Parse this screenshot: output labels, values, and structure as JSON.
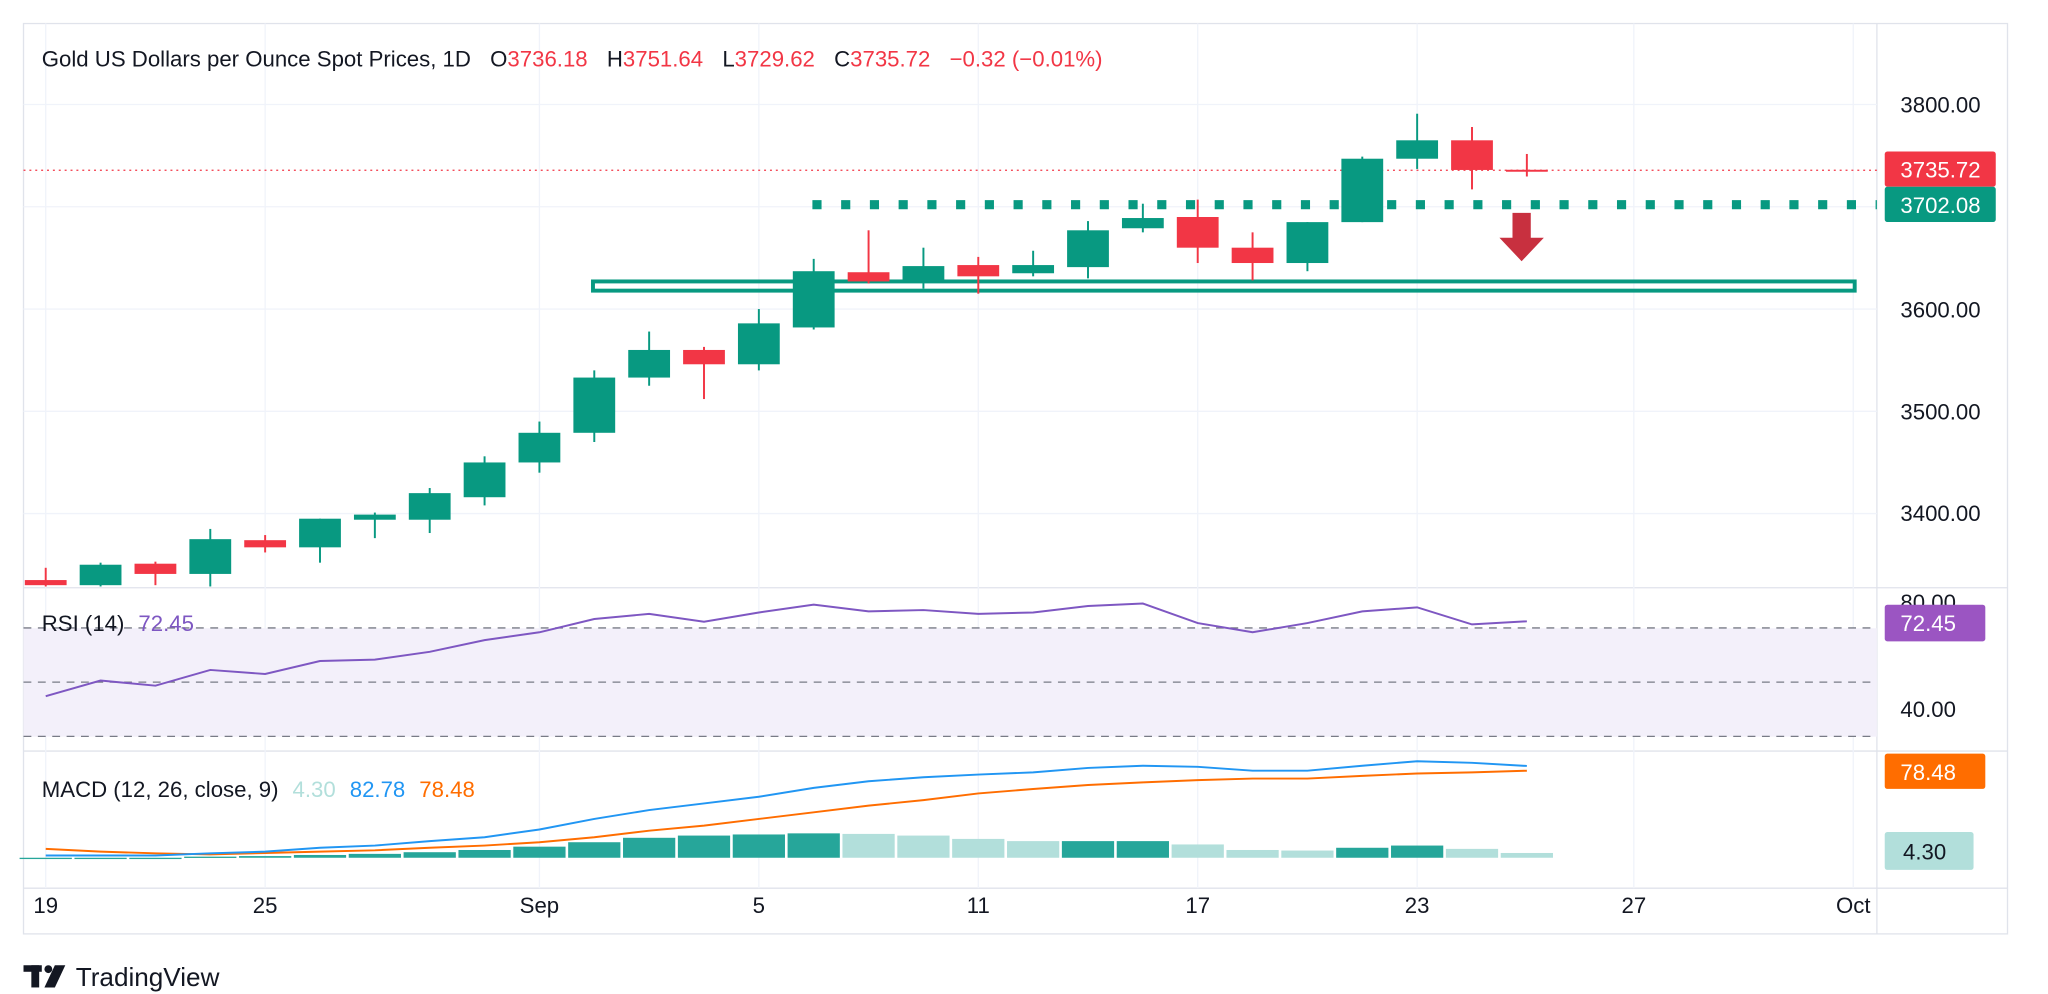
{
  "header": {
    "title": "Gold US Dollars per Ounce Spot Prices, 1D",
    "o_label": "O",
    "o_value": "3736.18",
    "h_label": "H",
    "h_value": "3751.64",
    "l_label": "L",
    "l_value": "3729.62",
    "c_label": "C",
    "c_value": "3735.72",
    "change": "−0.32 (−0.01%)"
  },
  "colors": {
    "up": "#089981",
    "down": "#f23645",
    "rsi": "#7e57c2",
    "rsi_label": "#9b55c2",
    "macd": "#2196f3",
    "signal": "#ff6d00",
    "hist_up": "#26a69a",
    "hist_down": "#b2dfdb",
    "arrow": "#c8303f"
  },
  "price_axis": {
    "ticks": [
      "3800.00",
      "3600.00",
      "3500.00",
      "3400.00"
    ],
    "last_price_label": "3735.72",
    "level_label": "3702.08"
  },
  "rsi_axis": {
    "ticks": [
      "80.00",
      "40.00"
    ],
    "value_label": "72.45"
  },
  "macd_axis": {
    "signal_label": "78.48",
    "hist_label": "4.30"
  },
  "time_axis": {
    "ticks": [
      "19",
      "25",
      "Sep",
      "5",
      "11",
      "17",
      "23",
      "27",
      "Oct"
    ]
  },
  "legend": {
    "rsi_name": "RSI (14)",
    "rsi_value": "72.45",
    "macd_name": "MACD (12, 26, close, 9)",
    "macd_hist": "4.30",
    "macd_value": "82.78",
    "macd_signal": "78.48"
  },
  "branding": {
    "logo_text": "TradingView"
  },
  "chart_data": {
    "type": "candlestick",
    "title": "Gold US Dollars per Ounce Spot Prices, 1D",
    "ylim": [
      3327,
      3830
    ],
    "levels": {
      "resistance_dotted": 3702.08,
      "support_zone": [
        3618,
        3627
      ],
      "last_price": 3735.72
    },
    "annotations": [
      "down-arrow below resistance at latest bar"
    ],
    "candles": [
      {
        "date": "Aug 19",
        "o": 3335,
        "h": 3347,
        "l": 3327,
        "c": 3330
      },
      {
        "date": "Aug 20",
        "o": 3330,
        "h": 3352,
        "l": 3328,
        "c": 3350
      },
      {
        "date": "Aug 21",
        "o": 3351,
        "h": 3353,
        "l": 3330,
        "c": 3341
      },
      {
        "date": "Aug 22",
        "o": 3341,
        "h": 3385,
        "l": 3328,
        "c": 3375
      },
      {
        "date": "Aug 25",
        "o": 3374,
        "h": 3379,
        "l": 3362,
        "c": 3367
      },
      {
        "date": "Aug 26",
        "o": 3367,
        "h": 3395,
        "l": 3352,
        "c": 3395
      },
      {
        "date": "Aug 27",
        "o": 3394,
        "h": 3401,
        "l": 3376,
        "c": 3399
      },
      {
        "date": "Aug 28",
        "o": 3394,
        "h": 3425,
        "l": 3381,
        "c": 3420
      },
      {
        "date": "Aug 29",
        "o": 3416,
        "h": 3456,
        "l": 3408,
        "c": 3450
      },
      {
        "date": "Sep 1",
        "o": 3450,
        "h": 3490,
        "l": 3440,
        "c": 3479
      },
      {
        "date": "Sep 2",
        "o": 3479,
        "h": 3540,
        "l": 3470,
        "c": 3533
      },
      {
        "date": "Sep 3",
        "o": 3533,
        "h": 3578,
        "l": 3525,
        "c": 3560
      },
      {
        "date": "Sep 4",
        "o": 3560,
        "h": 3563,
        "l": 3512,
        "c": 3546
      },
      {
        "date": "Sep 5",
        "o": 3546,
        "h": 3600,
        "l": 3540,
        "c": 3586
      },
      {
        "date": "Sep 8",
        "o": 3582,
        "h": 3649,
        "l": 3580,
        "c": 3637
      },
      {
        "date": "Sep 9",
        "o": 3636,
        "h": 3677,
        "l": 3625,
        "c": 3627
      },
      {
        "date": "Sep 10",
        "o": 3627,
        "h": 3660,
        "l": 3620,
        "c": 3642
      },
      {
        "date": "Sep 11",
        "o": 3643,
        "h": 3651,
        "l": 3615,
        "c": 3632
      },
      {
        "date": "Sep 12",
        "o": 3635,
        "h": 3657,
        "l": 3632,
        "c": 3643
      },
      {
        "date": "Sep 15",
        "o": 3641,
        "h": 3686,
        "l": 3630,
        "c": 3677
      },
      {
        "date": "Sep 16",
        "o": 3679,
        "h": 3703,
        "l": 3675,
        "c": 3689
      },
      {
        "date": "Sep 17",
        "o": 3690,
        "h": 3707,
        "l": 3645,
        "c": 3660
      },
      {
        "date": "Sep 18",
        "o": 3660,
        "h": 3675,
        "l": 3628,
        "c": 3645
      },
      {
        "date": "Sep 19",
        "o": 3645,
        "h": 3685,
        "l": 3637,
        "c": 3685
      },
      {
        "date": "Sep 22",
        "o": 3685,
        "h": 3749,
        "l": 3685,
        "c": 3747
      },
      {
        "date": "Sep 23",
        "o": 3747,
        "h": 3791,
        "l": 3737,
        "c": 3765
      },
      {
        "date": "Sep 24",
        "o": 3765,
        "h": 3778,
        "l": 3717,
        "c": 3736
      },
      {
        "date": "Sep 25",
        "o": 3736.18,
        "h": 3751.64,
        "l": 3729.62,
        "c": 3735.72
      }
    ],
    "rsi": {
      "name": "RSI (14)",
      "ylim": [
        20,
        85
      ],
      "bands": [
        30,
        50,
        70
      ],
      "values": [
        44.8,
        50.6,
        48.7,
        54.5,
        53,
        57.8,
        58.3,
        61.2,
        65.5,
        68.4,
        73.3,
        75.2,
        72.3,
        75.7,
        78.6,
        76.1,
        76.6,
        75.2,
        75.7,
        78.1,
        79,
        71.8,
        68.4,
        71.8,
        76.1,
        77.6,
        71.3,
        72.45
      ]
    },
    "macd": {
      "name": "MACD (12, 26, close, 9)",
      "macd": [
        2,
        2,
        2,
        4,
        5.5,
        9,
        11,
        15,
        18.5,
        25.5,
        35,
        43,
        49,
        55,
        63,
        69,
        72.6,
        75,
        77,
        81,
        83,
        82,
        78.5,
        78.5,
        83,
        87,
        85.6,
        82.78
      ],
      "signal": [
        8,
        5.5,
        4,
        3,
        4.3,
        5.5,
        6.7,
        9,
        11,
        14,
        18.5,
        24.4,
        29,
        35,
        41,
        47,
        52,
        58,
        62,
        65.6,
        68,
        70,
        71.4,
        71.4,
        73.8,
        76,
        77,
        78.48
      ],
      "histogram": [
        -1,
        -1,
        0,
        1,
        1.5,
        2.5,
        3.5,
        5,
        7,
        10,
        14,
        18,
        20,
        21,
        22,
        21.5,
        20,
        17,
        15,
        15,
        15,
        12,
        7,
        6.5,
        9,
        11,
        8,
        4.3
      ]
    }
  }
}
